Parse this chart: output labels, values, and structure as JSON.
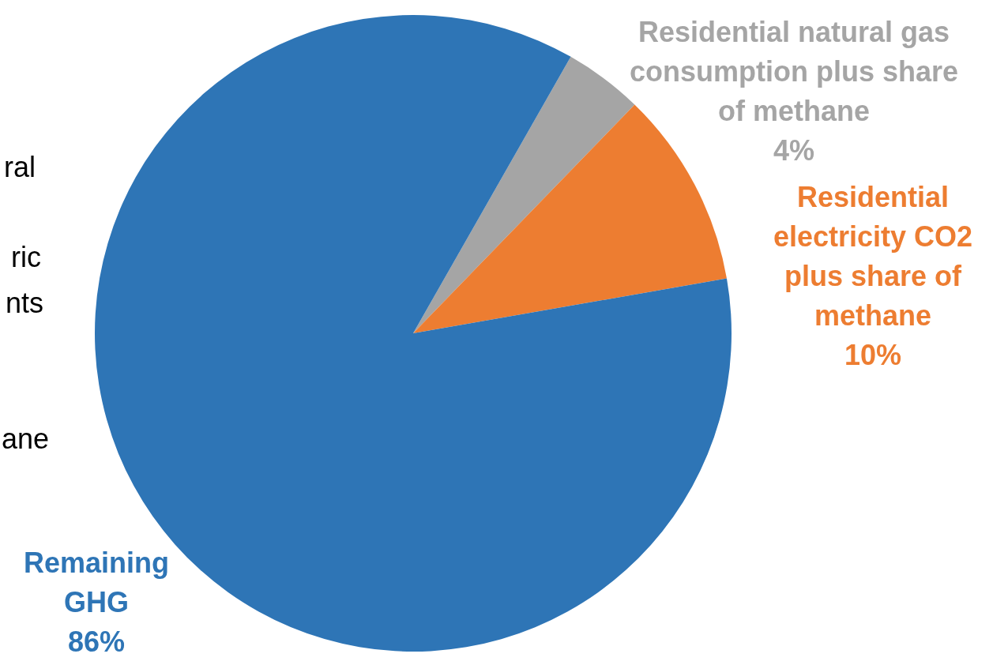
{
  "chart_data": {
    "type": "pie",
    "categories": [
      "Residential natural gas consumption plus share of methane",
      "Residential electricity CO2 plus share of methane",
      "Remaining GHG"
    ],
    "values": [
      4,
      10,
      86
    ],
    "value_labels": [
      "4%",
      "10%",
      "86%"
    ],
    "colors": [
      "#a5a5a5",
      "#ed7d31",
      "#2e75b6"
    ],
    "annotations": [
      "ral",
      "ric",
      "nts",
      "ane"
    ]
  }
}
